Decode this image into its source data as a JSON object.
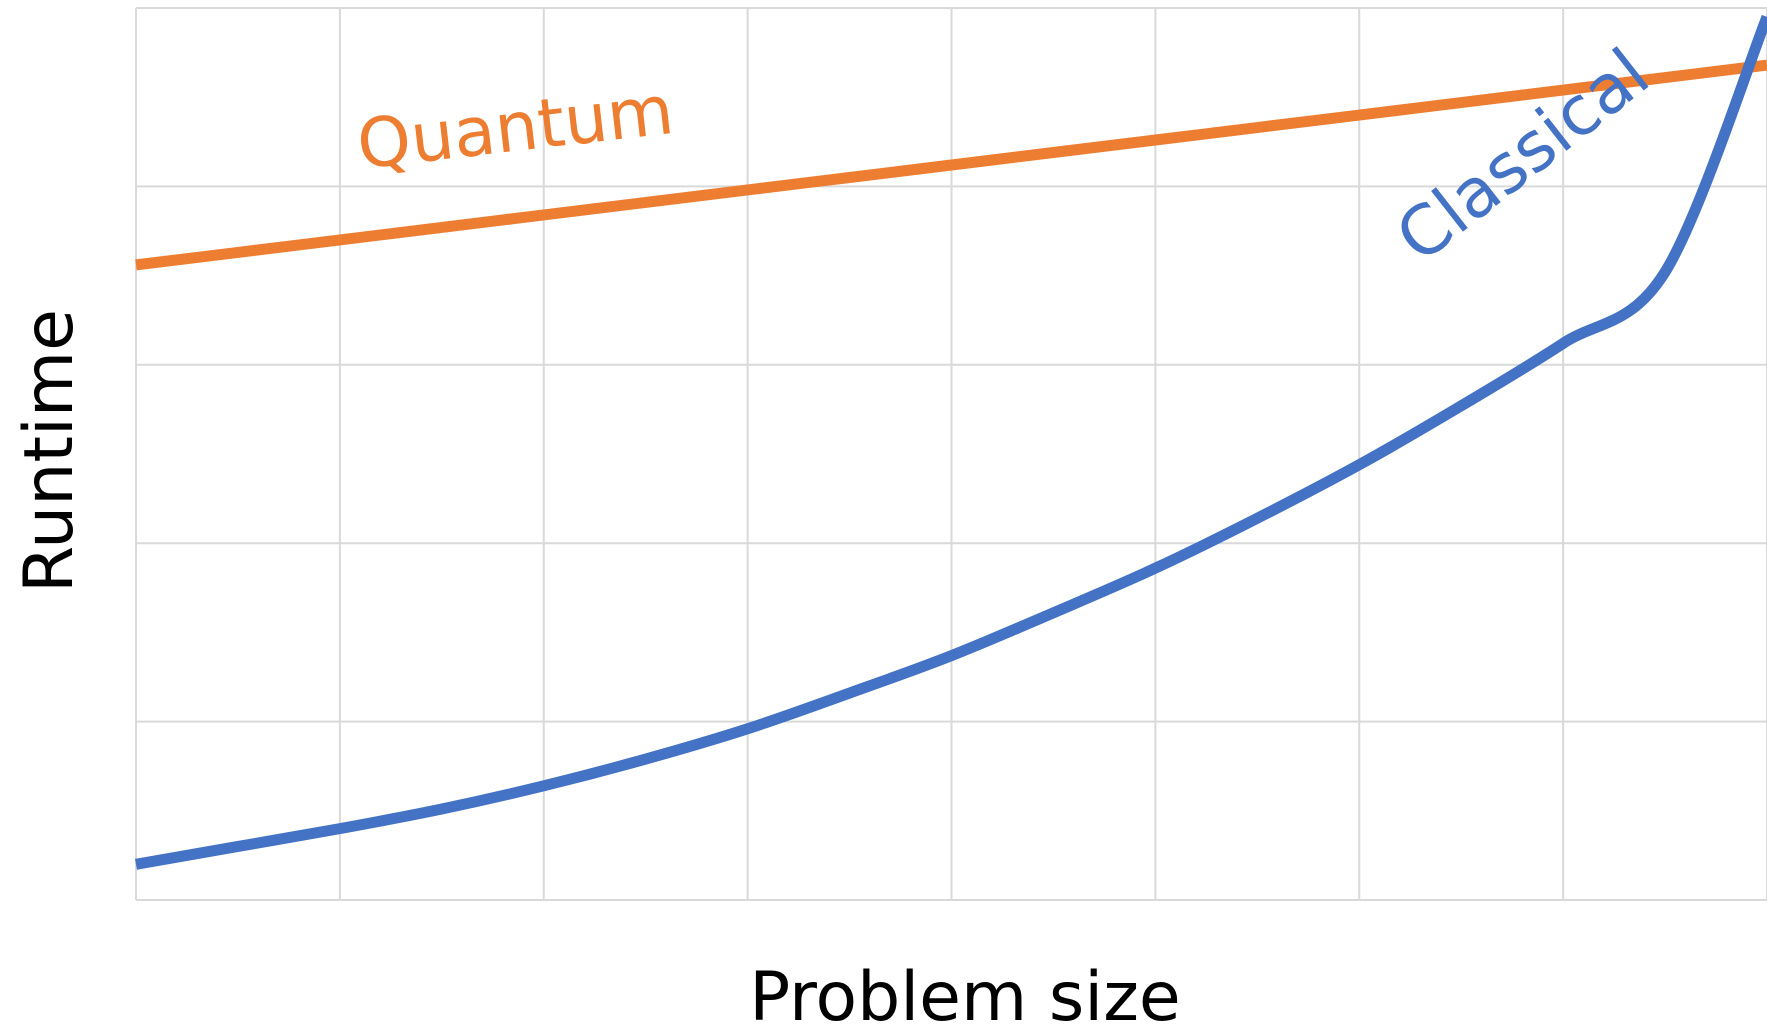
{
  "chart_data": {
    "type": "line",
    "xlabel": "Problem size",
    "ylabel": "Runtime",
    "title": "",
    "xlim": [
      0,
      8
    ],
    "ylim": [
      0,
      5
    ],
    "grid": true,
    "legend": "inline",
    "x": [
      0,
      0.5,
      1,
      1.5,
      2,
      2.5,
      3,
      3.5,
      4,
      4.5,
      5,
      5.5,
      6,
      6.5,
      7,
      7.5,
      8
    ],
    "series": [
      {
        "name": "Quantum",
        "color": "#ed7d31",
        "values": [
          3.56,
          3.63,
          3.7,
          3.77,
          3.84,
          3.91,
          3.98,
          4.05,
          4.12,
          4.19,
          4.26,
          4.33,
          4.4,
          4.47,
          4.54,
          4.61,
          4.68
        ]
      },
      {
        "name": "Classical",
        "color": "#4472c4",
        "values": [
          0.2,
          0.3,
          0.4,
          0.51,
          0.64,
          0.79,
          0.96,
          1.16,
          1.37,
          1.61,
          1.86,
          2.14,
          2.44,
          2.77,
          3.12,
          3.52,
          4.95
        ]
      }
    ]
  }
}
